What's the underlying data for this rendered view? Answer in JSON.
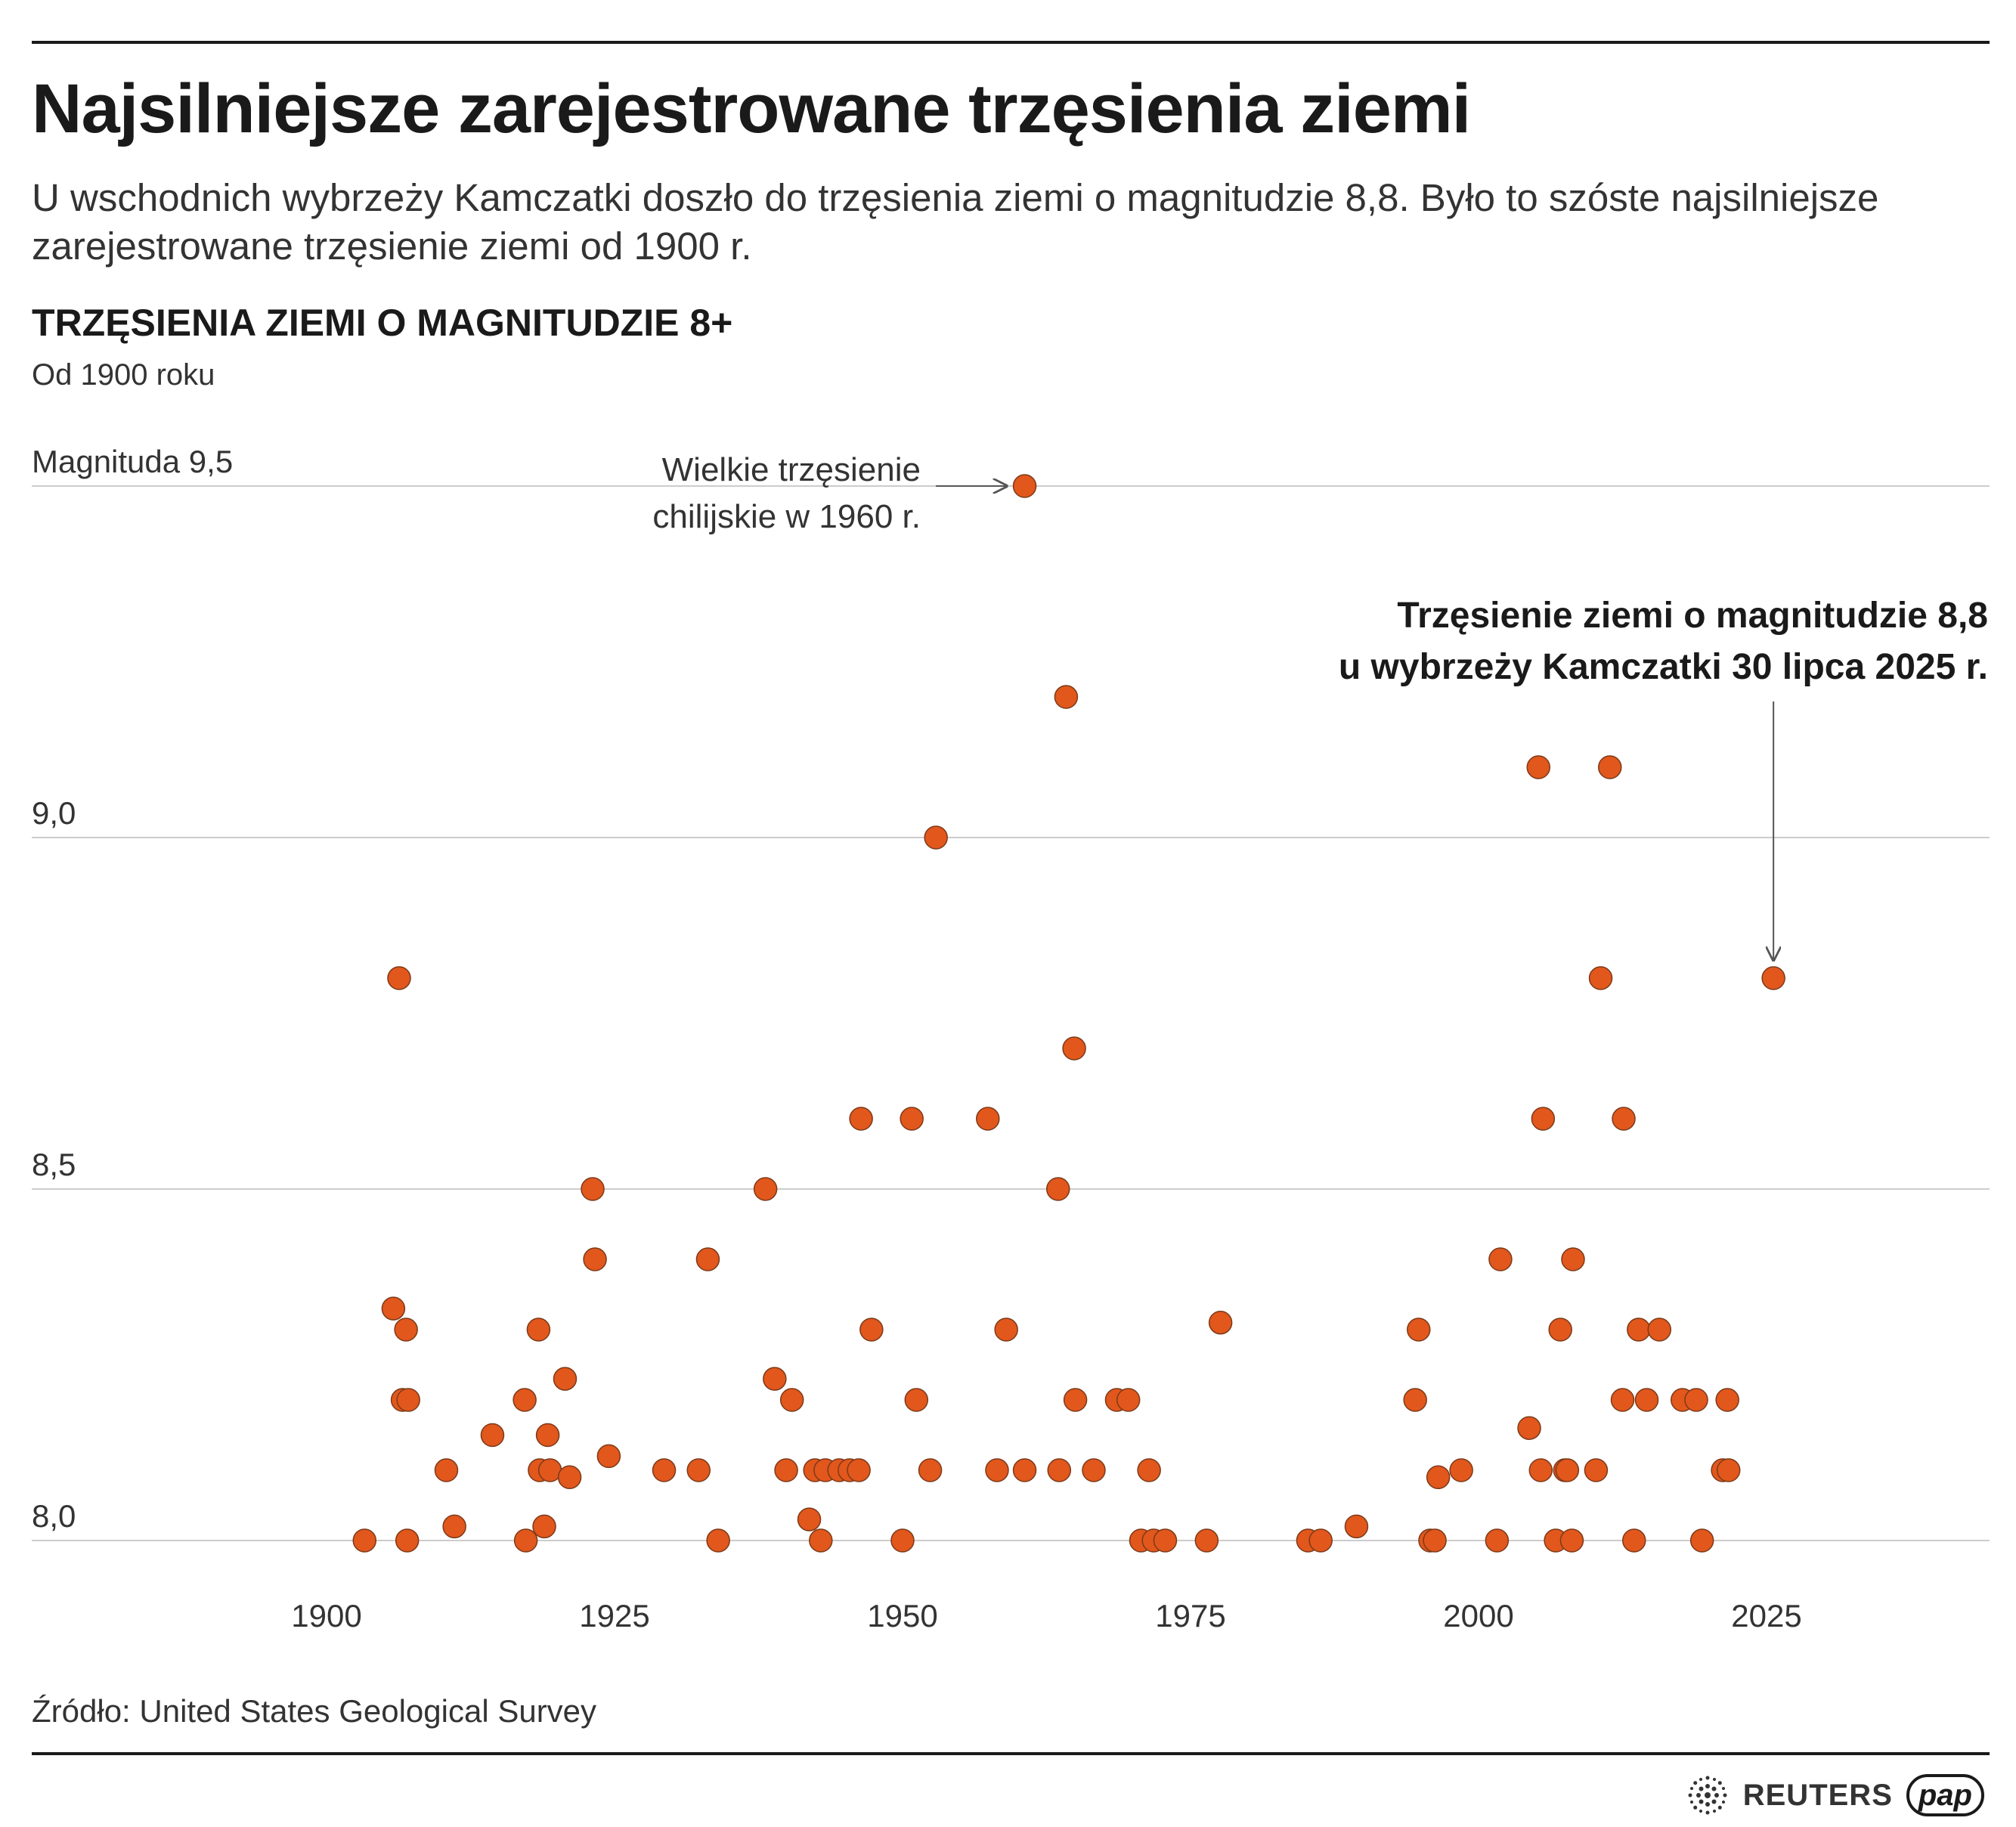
{
  "title": "Najsilniejsze zarejestrowane trzęsienia ziemi",
  "subtitle": "U wschodnich wybrzeży Kamczatki doszło do trzęsienia ziemi o magnitudzie 8,8. Było to szóste najsilniejsze zarejestrowane trzęsienie ziemi od 1900 r.",
  "section_title": "TRZĘSIENIA ZIEMI O MAGNITUDZIE 8+",
  "section_subtitle": "Od 1900 roku",
  "source": "Źródło: United States Geological Survey",
  "logos": {
    "reuters": "REUTERS",
    "pap": "pap"
  },
  "colors": {
    "dot": "#E2571C",
    "dot_stroke": "#7a3a1a",
    "grid": "#cccccc",
    "text": "#1a1a1a"
  },
  "chart_data": {
    "type": "scatter",
    "title": "TRZĘSIENIA ZIEMI O MAGNITUDZIE 8+",
    "subtitle": "Od 1900 roku",
    "xlabel": "",
    "ylabel": "Magnituda",
    "xlim": [
      1875,
      2047
    ],
    "ylim": [
      7.9,
      9.6
    ],
    "x_ticks": [
      1900,
      1925,
      1950,
      1975,
      2000,
      2025
    ],
    "x_tick_labels": [
      "1900",
      "1925",
      "1950",
      "1975",
      "2000",
      "2025"
    ],
    "y_ticks": [
      8.0,
      8.5,
      9.0,
      9.5
    ],
    "y_tick_labels": [
      "8,0",
      "8,5",
      "9,0",
      "Magnituda 9,5"
    ],
    "grid": true,
    "points": [
      [
        1903.3,
        8.0
      ],
      [
        1905.8,
        8.33
      ],
      [
        1906.3,
        8.8
      ],
      [
        1906.6,
        8.2
      ],
      [
        1906.9,
        8.3
      ],
      [
        1907.1,
        8.2
      ],
      [
        1907.0,
        8.0
      ],
      [
        1910.4,
        8.1
      ],
      [
        1911.1,
        8.02
      ],
      [
        1914.4,
        8.15
      ],
      [
        1917.2,
        8.2
      ],
      [
        1917.3,
        8.0
      ],
      [
        1918.4,
        8.3
      ],
      [
        1918.5,
        8.1
      ],
      [
        1918.9,
        8.02
      ],
      [
        1919.2,
        8.15
      ],
      [
        1919.4,
        8.1
      ],
      [
        1920.7,
        8.23
      ],
      [
        1921.1,
        8.09
      ],
      [
        1923.1,
        8.5
      ],
      [
        1923.3,
        8.4
      ],
      [
        1924.5,
        8.12
      ],
      [
        1929.3,
        8.1
      ],
      [
        1932.3,
        8.1
      ],
      [
        1933.1,
        8.4
      ],
      [
        1934.0,
        8.0
      ],
      [
        1938.1,
        8.5
      ],
      [
        1938.9,
        8.23
      ],
      [
        1939.9,
        8.1
      ],
      [
        1940.4,
        8.2
      ],
      [
        1941.9,
        8.03
      ],
      [
        1942.4,
        8.1
      ],
      [
        1942.9,
        8.0
      ],
      [
        1943.3,
        8.1
      ],
      [
        1944.5,
        8.1
      ],
      [
        1945.4,
        8.1
      ],
      [
        1946.2,
        8.1
      ],
      [
        1946.4,
        8.6
      ],
      [
        1947.3,
        8.3
      ],
      [
        1950.0,
        8.0
      ],
      [
        1950.8,
        8.6
      ],
      [
        1951.2,
        8.2
      ],
      [
        1952.4,
        8.1
      ],
      [
        1952.9,
        9.0
      ],
      [
        1957.4,
        8.6
      ],
      [
        1958.2,
        8.1
      ],
      [
        1959.0,
        8.3
      ],
      [
        1960.6,
        9.5
      ],
      [
        1960.6,
        8.1
      ],
      [
        1963.5,
        8.5
      ],
      [
        1963.6,
        8.1
      ],
      [
        1964.2,
        9.2
      ],
      [
        1964.9,
        8.7
      ],
      [
        1965.0,
        8.2
      ],
      [
        1966.6,
        8.1
      ],
      [
        1968.6,
        8.2
      ],
      [
        1969.6,
        8.2
      ],
      [
        1970.7,
        8.0
      ],
      [
        1971.4,
        8.1
      ],
      [
        1971.8,
        8.0
      ],
      [
        1972.8,
        8.0
      ],
      [
        1976.4,
        8.0
      ],
      [
        1977.6,
        8.31
      ],
      [
        1985.2,
        8.0
      ],
      [
        1986.3,
        8.0
      ],
      [
        1989.4,
        8.02
      ],
      [
        1994.5,
        8.2
      ],
      [
        1994.8,
        8.3
      ],
      [
        1995.8,
        8.0
      ],
      [
        1996.2,
        8.0
      ],
      [
        1996.5,
        8.09
      ],
      [
        1998.5,
        8.1
      ],
      [
        2001.6,
        8.0
      ],
      [
        2001.9,
        8.4
      ],
      [
        2004.4,
        8.16
      ],
      [
        2005.2,
        9.1
      ],
      [
        2005.4,
        8.1
      ],
      [
        2005.6,
        8.6
      ],
      [
        2006.7,
        8.0
      ],
      [
        2007.1,
        8.3
      ],
      [
        2007.5,
        8.1
      ],
      [
        2007.7,
        8.1
      ],
      [
        2008.1,
        8.0
      ],
      [
        2008.2,
        8.4
      ],
      [
        2010.2,
        8.1
      ],
      [
        2010.6,
        8.8
      ],
      [
        2011.4,
        9.1
      ],
      [
        2012.5,
        8.2
      ],
      [
        2012.6,
        8.6
      ],
      [
        2013.5,
        8.0
      ],
      [
        2013.9,
        8.3
      ],
      [
        2014.6,
        8.2
      ],
      [
        2015.7,
        8.3
      ],
      [
        2017.7,
        8.2
      ],
      [
        2018.9,
        8.2
      ],
      [
        2019.4,
        8.0
      ],
      [
        2021.2,
        8.1
      ],
      [
        2021.7,
        8.1
      ],
      [
        2021.6,
        8.2
      ],
      [
        2025.6,
        8.8
      ]
    ],
    "annotations": [
      {
        "text": [
          "Wielkie trzęsienie",
          "chilijskie w 1960 r."
        ],
        "x": 1960.6,
        "y": 9.5,
        "bold": false
      },
      {
        "text": [
          "Trzęsienie ziemi o magnitudzie 8,8",
          "u wybrzeży Kamczatki 30 lipca 2025 r."
        ],
        "x": 2025.6,
        "y": 8.8,
        "bold": true
      }
    ]
  }
}
